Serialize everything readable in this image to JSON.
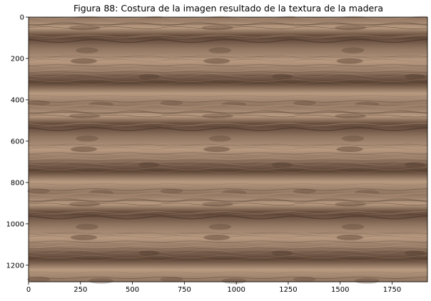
{
  "figure": {
    "title": "Figura 88: Costura de la imagen resultado de la textura de la madera"
  },
  "axes": {
    "x_range": [
      0,
      1920
    ],
    "y_range": [
      0,
      1280
    ],
    "y_inverted": true,
    "x_ticks": [
      0,
      250,
      500,
      750,
      1000,
      1250,
      1500,
      1750
    ],
    "y_ticks": [
      0,
      200,
      400,
      600,
      800,
      1000,
      1200
    ],
    "grid": false
  },
  "image": {
    "content": "wood plank texture tiled 3 across by 3 down",
    "tiles_x": 3,
    "tiles_y": 3,
    "colors": {
      "base": "#8f7460",
      "light": "#b89a80",
      "dark": "#5a4233",
      "grain": "#3f2e23"
    }
  }
}
